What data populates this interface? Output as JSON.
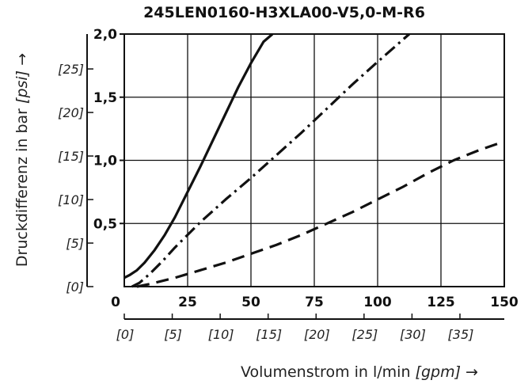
{
  "chart_data": {
    "type": "line",
    "title": "245LEN0160-H3XLA00-V5,0-M-R6",
    "xlabel_prefix": "Volumenstrom in l/min ",
    "xlabel_unit": "[gpm]",
    "xlabel_suffix": " →",
    "ylabel_prefix": "Druckdifferenz in bar ",
    "ylabel_unit": "[psi]",
    "ylabel_suffix": " →",
    "xlim": [
      0,
      150
    ],
    "ylim": [
      0,
      2.0
    ],
    "x_ticks": [
      "0",
      "25",
      "50",
      "75",
      "100",
      "125",
      "150"
    ],
    "y_ticks": [
      "2,0",
      "1,5",
      "1,0",
      "0,5"
    ],
    "x_ticks_gpm": [
      "[0]",
      "[5]",
      "[10]",
      "[15]",
      "[20]",
      "[25]",
      "[30]",
      "[35]"
    ],
    "y_ticks_psi": [
      "[25]",
      "[20]",
      "[15]",
      "[10]",
      "[5]",
      "[0]"
    ],
    "grid": true,
    "series": [
      {
        "style": "solid",
        "x": [
          0,
          2,
          5,
          8,
          12,
          16,
          20,
          25,
          30,
          35,
          40,
          45,
          50,
          55,
          58.5
        ],
        "y": [
          0.07,
          0.09,
          0.13,
          0.19,
          0.29,
          0.41,
          0.55,
          0.75,
          0.95,
          1.16,
          1.37,
          1.58,
          1.77,
          1.94,
          2.0
        ]
      },
      {
        "style": "dashdot",
        "x": [
          3,
          6,
          10,
          15,
          20,
          25,
          30,
          40,
          50,
          60,
          70,
          80,
          90,
          100,
          112.5
        ],
        "y": [
          0.0,
          0.03,
          0.1,
          0.2,
          0.31,
          0.41,
          0.51,
          0.69,
          0.86,
          1.04,
          1.22,
          1.41,
          1.6,
          1.78,
          2.0
        ]
      },
      {
        "style": "dashed",
        "x": [
          5,
          10,
          20,
          30,
          40,
          50,
          60,
          70,
          80,
          90,
          100,
          110,
          120,
          130,
          140,
          150
        ],
        "y": [
          0.0,
          0.02,
          0.07,
          0.13,
          0.19,
          0.26,
          0.33,
          0.41,
          0.5,
          0.59,
          0.69,
          0.79,
          0.9,
          1.0,
          1.08,
          1.15
        ]
      }
    ]
  }
}
